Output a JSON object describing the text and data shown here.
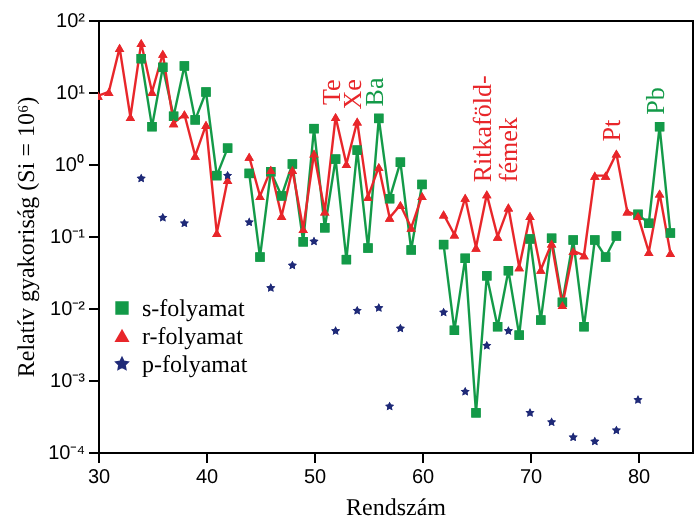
{
  "chart_data": {
    "type": "line",
    "xlabel": "Rendszám",
    "ylabel": "Relatív gyakoriság (Si = 10⁶)",
    "x": [
      30,
      31,
      32,
      33,
      34,
      35,
      36,
      37,
      38,
      39,
      40,
      41,
      42,
      43,
      44,
      45,
      46,
      47,
      48,
      49,
      50,
      51,
      52,
      53,
      54,
      55,
      56,
      57,
      58,
      59,
      60,
      61,
      62,
      63,
      64,
      65,
      66,
      67,
      68,
      69,
      70,
      71,
      72,
      73,
      74,
      75,
      76,
      77,
      78,
      79,
      80,
      81,
      82,
      83
    ],
    "series": [
      {
        "name": "s-folyamat",
        "type": "line",
        "marker": "square",
        "color": "#139a48",
        "values": [
          null,
          null,
          null,
          null,
          29,
          3.3,
          22,
          4.6,
          23,
          4.1,
          10,
          0.69,
          1.66,
          null,
          0.74,
          0.051,
          0.78,
          0.36,
          1.0,
          0.083,
          3.1,
          0.13,
          1.17,
          0.047,
          1.56,
          0.068,
          4.3,
          0.33,
          1.06,
          0.064,
          0.52,
          null,
          0.076,
          0.0049,
          0.049,
          0.00035,
          0.028,
          0.0055,
          0.033,
          0.0042,
          0.091,
          0.0068,
          0.093,
          0.012,
          0.088,
          0.0055,
          0.088,
          0.051,
          0.1,
          null,
          0.2,
          0.15,
          3.3,
          0.11
        ]
      },
      {
        "name": "r-folyamat",
        "type": "line",
        "marker": "triangle",
        "color": "#e8262a",
        "values": [
          8.9,
          10,
          41,
          4.5,
          48,
          10,
          34,
          3.7,
          4.9,
          1.3,
          3.5,
          0.11,
          0.6,
          null,
          1.26,
          0.36,
          0.83,
          0.19,
          0.83,
          0.125,
          1.4,
          0.22,
          4.5,
          1.0,
          3.9,
          0.35,
          0.91,
          0.18,
          0.27,
          0.13,
          0.36,
          null,
          0.2,
          0.105,
          0.34,
          0.069,
          0.38,
          0.098,
          0.25,
          0.037,
          0.19,
          0.034,
          0.079,
          0.011,
          0.062,
          0.054,
          0.69,
          0.69,
          1.4,
          0.22,
          0.19,
          0.06,
          0.39,
          0.058
        ]
      },
      {
        "name": "p-folyamat",
        "type": "scatter",
        "marker": "star",
        "color": "#1f2a78",
        "x": [
          34,
          36,
          38,
          42,
          44,
          46,
          48,
          50,
          52,
          54,
          56,
          57,
          58,
          62,
          64,
          66,
          68,
          70,
          72,
          74,
          76,
          78,
          80
        ],
        "values": [
          0.63,
          0.18,
          0.15,
          0.69,
          0.155,
          0.019,
          0.039,
          0.084,
          0.0048,
          0.0092,
          0.01,
          0.00043,
          0.0052,
          0.0087,
          0.00069,
          0.003,
          0.0048,
          0.00035,
          0.00026,
          0.00016,
          0.00014,
          0.0002,
          0.00053
        ]
      }
    ],
    "log": "y",
    "xlim": [
      30,
      85
    ],
    "xticks": [
      30,
      40,
      50,
      60,
      70,
      80
    ],
    "ylim": [
      0.0001,
      100
    ],
    "yticks": [
      {
        "value": 0.0001,
        "label": "10⁻⁴"
      },
      {
        "value": 0.001,
        "label": "10⁻³"
      },
      {
        "value": 0.01,
        "label": "10⁻²"
      },
      {
        "value": 0.1,
        "label": "10⁻¹"
      },
      {
        "value": 1,
        "label": "10⁰"
      },
      {
        "value": 10,
        "label": "10¹"
      },
      {
        "value": 100,
        "label": "10²"
      }
    ],
    "legend": "bottom left",
    "grid": false,
    "annotations": [
      {
        "text": "Te",
        "x": 52,
        "y": 4.5
      },
      {
        "text": "Xe",
        "x": 54,
        "y": 3.9
      },
      {
        "text": "Ba",
        "x": 56,
        "y": 4.3
      },
      {
        "text": "Ritkaföld-\nfémek",
        "x": 66,
        "y": 0.38
      },
      {
        "text": "Pt",
        "x": 78,
        "y": 1.4
      },
      {
        "text": "Pb",
        "x": 82,
        "y": 3.3
      }
    ]
  }
}
